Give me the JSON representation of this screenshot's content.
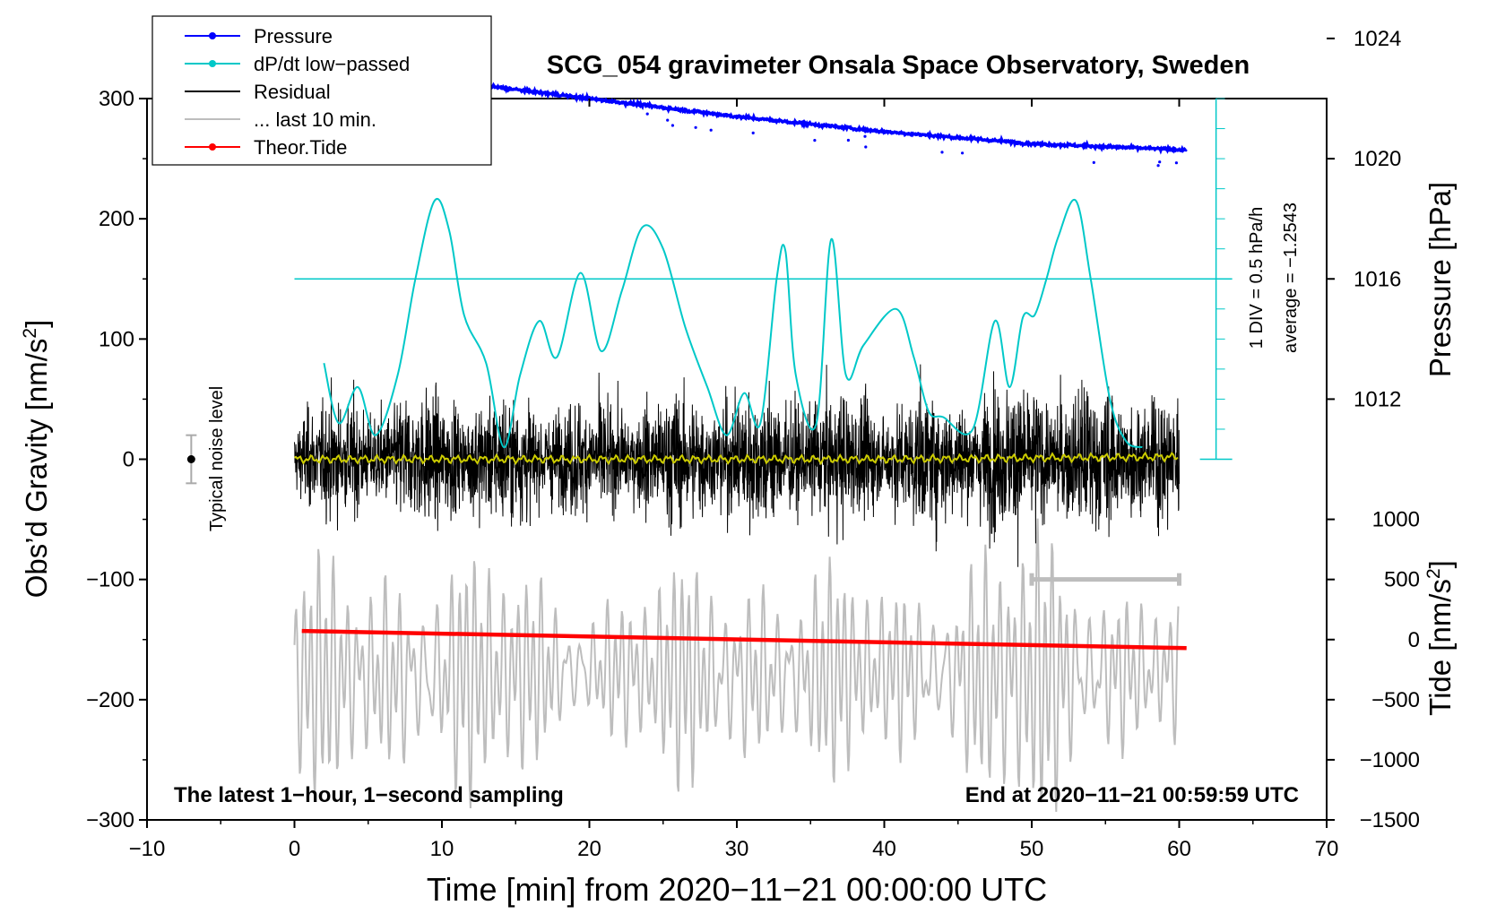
{
  "chart_data": {
    "type": "line",
    "title": "SCG_054 gravimeter Onsala Space Observatory, Sweden",
    "xlabel": "Time [min] from 2020−11−21 00:00:00 UTC",
    "ylabel_left": "Obs’d Gravity [nm/s",
    "ylabel_left_sup": "2",
    "ylabel_left_end": "]",
    "ylabel_right_top": "Pressure [hPa]",
    "ylabel_right_bottom": "Tide [nm/s",
    "ylabel_right_bottom_sup": "2",
    "ylabel_right_bottom_end": "]",
    "xlim": [
      -10,
      70
    ],
    "ylim_left": [
      -300,
      300
    ],
    "x_ticks": [
      -10,
      0,
      10,
      20,
      30,
      40,
      50,
      60,
      70
    ],
    "x_tick_labels": [
      "−10",
      "0",
      "10",
      "20",
      "30",
      "40",
      "50",
      "60",
      "70"
    ],
    "y_ticks_left": [
      -300,
      -200,
      -100,
      0,
      100,
      200,
      300
    ],
    "y_tick_labels_left": [
      "−300",
      "−200",
      "−100",
      "0",
      "100",
      "200",
      "300"
    ],
    "pressure_axis": {
      "ticks": [
        1012,
        1016,
        1020,
        1024,
        1028
      ],
      "tick_labels": [
        "1012",
        "1016",
        "1020",
        "1024",
        "1028"
      ],
      "gravity_at_1012": 50,
      "gravity_per_hpa": 25
    },
    "tide_axis": {
      "ticks": [
        -1500,
        -1000,
        -500,
        0,
        500,
        1000
      ],
      "tick_labels": [
        "−1500",
        "−1000",
        "−500",
        "0",
        "500",
        "1000"
      ],
      "gravity_at_0": -150,
      "gravity_per_unit": 0.1
    },
    "dpdt_scale": {
      "label1": "1 DIV = 0.5 hPa/h",
      "label2": "average = −1.2543",
      "x": 62.5,
      "y_bottom": 0,
      "y_top": 300,
      "divisions": 12,
      "average_line_y": 150
    },
    "legend": {
      "position": "top-left",
      "entries": [
        {
          "label": "Pressure",
          "color": "#0000ff",
          "style": "line-dot"
        },
        {
          "label": "dP/dt low−passed",
          "color": "#00c8c8",
          "style": "line-dot"
        },
        {
          "label": "Residual",
          "color": "#000000",
          "style": "line"
        },
        {
          "label": "... last 10 min.",
          "color": "#bdbdbd",
          "style": "line"
        },
        {
          "label": "Theor.Tide",
          "color": "#ff0000",
          "style": "line-dot"
        }
      ]
    },
    "noise_marker": {
      "label": "Typical noise level",
      "x": -7,
      "y": 0,
      "err": 20
    },
    "last10_bar": {
      "x_start": 50,
      "x_end": 60,
      "y": -100
    },
    "annotation_left": "The latest 1−hour, 1−second sampling",
    "annotation_right": "End at 2020−11−21 00:59:59 UTC",
    "series": [
      {
        "name": "Pressure",
        "color": "#0000ff",
        "units": "hPa",
        "x": [
          0,
          10,
          20,
          30,
          40,
          50,
          60
        ],
        "values": [
          1023.0,
          1022.6,
          1022.0,
          1021.4,
          1020.9,
          1020.5,
          1020.3
        ]
      },
      {
        "name": "dP/dt low−passed",
        "color": "#00c8c8",
        "units": "plot gravity scale",
        "x": [
          2,
          3,
          4.3,
          5.5,
          7,
          8.2,
          9.5,
          10.5,
          11.5,
          13,
          14.2,
          15.3,
          16.6,
          17.8,
          19.4,
          20.8,
          22.2,
          23.6,
          25,
          26.5,
          28,
          29.3,
          30.5,
          31.6,
          32.7,
          33.3,
          34,
          35.4,
          36.4,
          37.4,
          38.6,
          40.8,
          42,
          43,
          44,
          46,
          47.5,
          48.5,
          49.4,
          50.2,
          51,
          51.8,
          53,
          54,
          55.3,
          56.4,
          57.5
        ],
        "values": [
          80,
          30,
          60,
          20,
          70,
          150,
          215,
          190,
          120,
          80,
          10,
          70,
          115,
          85,
          155,
          90,
          140,
          193,
          175,
          110,
          60,
          20,
          55,
          30,
          150,
          173,
          70,
          30,
          183,
          70,
          95,
          125,
          85,
          40,
          35,
          25,
          115,
          60,
          118,
          120,
          150,
          185,
          215,
          150,
          50,
          15,
          10
        ]
      },
      {
        "name": "Residual",
        "color": "#000000",
        "units": "nm/s^2",
        "x": [
          0,
          10,
          20,
          30,
          40,
          50,
          60
        ],
        "values": [
          0,
          0,
          0,
          0,
          0,
          0,
          0
        ],
        "amplitude": [
          55,
          70,
          60,
          75,
          65,
          80,
          70
        ]
      },
      {
        "name": "... last 10 min.",
        "color": "#bdbdbd",
        "units": "nm/s^2 (10x)",
        "x": [
          0,
          10,
          20,
          30,
          40,
          50,
          60
        ],
        "values": [
          -180,
          -180,
          -175,
          -180,
          -175,
          -180,
          -175
        ],
        "amplitude": [
          80,
          100,
          60,
          90,
          70,
          110,
          60
        ]
      },
      {
        "name": "Theor.Tide",
        "color": "#ff0000",
        "units": "nm/s^2",
        "x": [
          0.5,
          60.5
        ],
        "values": [
          72,
          -71
        ]
      },
      {
        "name": "Smoothed residual",
        "color": "#cccc00",
        "units": "nm/s^2",
        "x": [
          0,
          20,
          40,
          60
        ],
        "values": [
          0,
          0,
          0,
          2
        ]
      }
    ]
  }
}
